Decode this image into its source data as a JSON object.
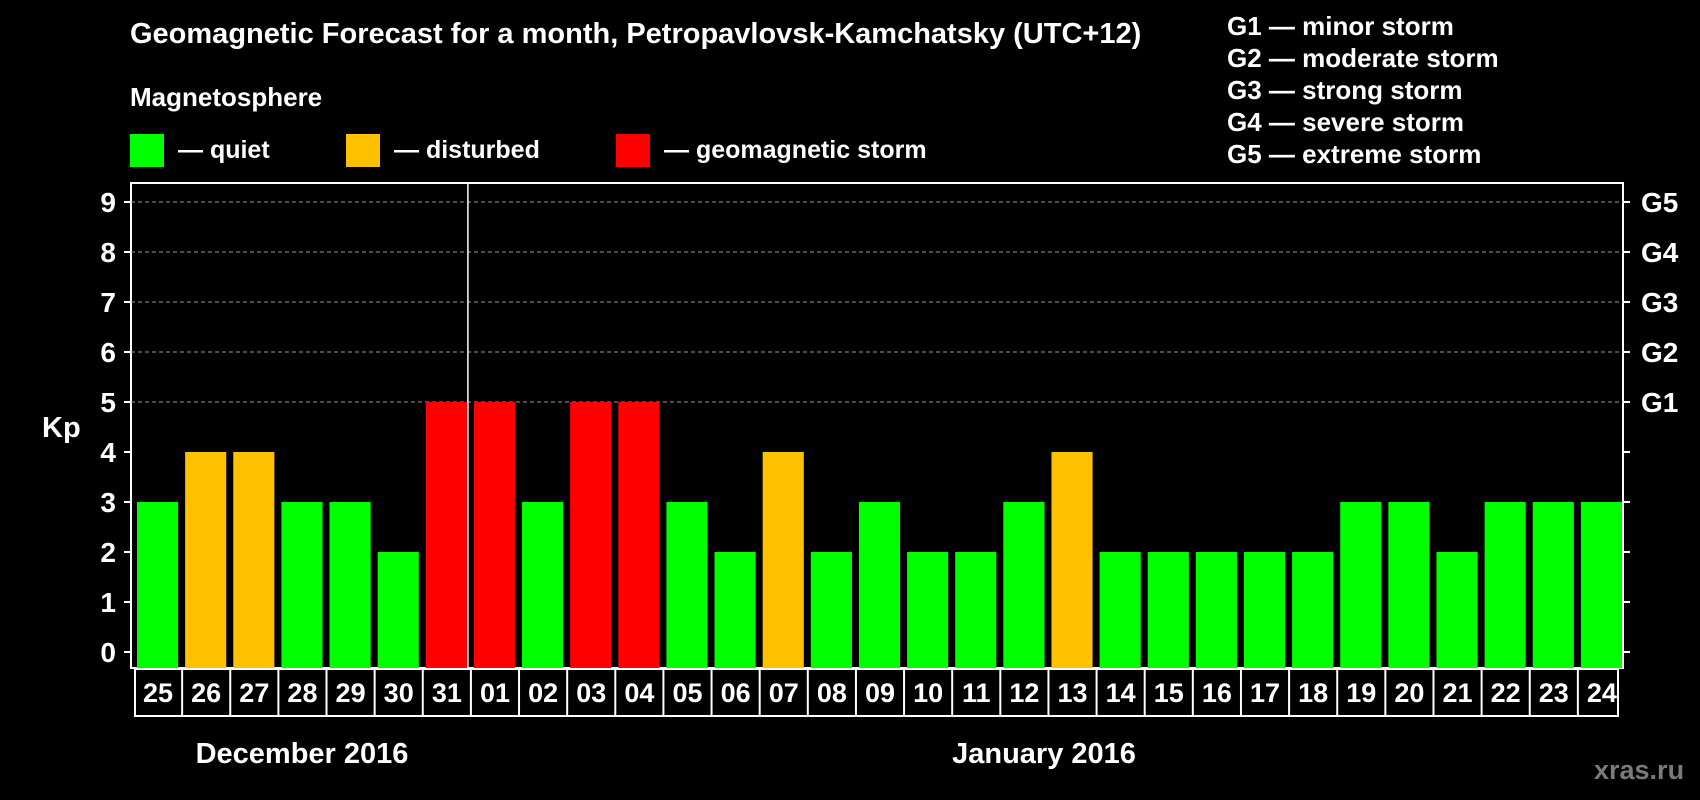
{
  "title": "Geomagnetic Forecast for a month, Petropavlovsk-Kamchatsky (UTC+12)",
  "legend": {
    "heading": "Magnetosphere",
    "items": [
      {
        "key": "quiet",
        "label": "— quiet",
        "color": "#00ff00"
      },
      {
        "key": "disturbed",
        "label": "— disturbed",
        "color": "#ffc000"
      },
      {
        "key": "storm",
        "label": "— geomagnetic storm",
        "color": "#ff0000"
      }
    ]
  },
  "g_scale": [
    "G1 — minor storm",
    "G2 — moderate storm",
    "G3 — strong storm",
    "G4 — severe storm",
    "G5 — extreme storm"
  ],
  "watermark": "xras.ru",
  "chart_data": {
    "type": "bar",
    "title": "Geomagnetic Forecast for a month, Petropavlovsk-Kamchatsky (UTC+12)",
    "ylabel": "Kp",
    "ylim": [
      0,
      9
    ],
    "yticks": [
      "0",
      "1",
      "2",
      "3",
      "4",
      "5",
      "6",
      "7",
      "8",
      "9"
    ],
    "right_axis": [
      {
        "value": 5,
        "label": "G1"
      },
      {
        "value": 6,
        "label": "G2"
      },
      {
        "value": 7,
        "label": "G3"
      },
      {
        "value": 8,
        "label": "G4"
      },
      {
        "value": 9,
        "label": "G5"
      }
    ],
    "categories": [
      "25",
      "26",
      "27",
      "28",
      "29",
      "30",
      "31",
      "01",
      "02",
      "03",
      "04",
      "05",
      "06",
      "07",
      "08",
      "09",
      "10",
      "11",
      "12",
      "13",
      "14",
      "15",
      "16",
      "17",
      "18",
      "19",
      "20",
      "21",
      "22",
      "23",
      "24"
    ],
    "values": [
      3,
      4,
      4,
      3,
      3,
      2,
      5,
      5,
      3,
      5,
      5,
      3,
      2,
      4,
      2,
      3,
      2,
      2,
      3,
      4,
      2,
      2,
      2,
      2,
      2,
      3,
      3,
      2,
      3,
      3,
      3
    ],
    "month_labels": [
      "December 2016",
      "January 2016"
    ],
    "month_split_index": 7,
    "color_rule": {
      "quiet": "Kp <= 3",
      "disturbed": "Kp = 4",
      "storm": "Kp >= 5"
    },
    "grid": "dashed at 5-9"
  }
}
